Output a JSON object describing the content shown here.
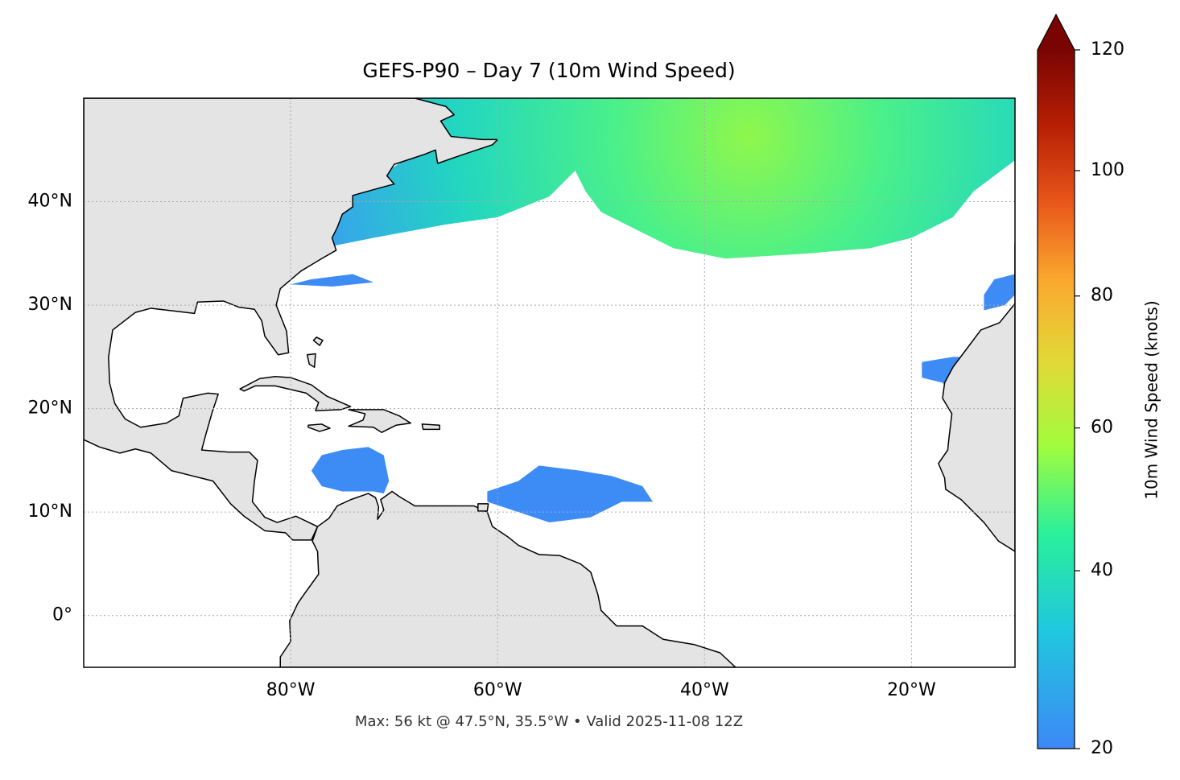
{
  "chart_data": {
    "type": "map",
    "title": "GEFS-P90 – Day 7 (10m Wind Speed)",
    "annotation": "Max: 56 kt @ 47.5°N, 35.5°W • Valid 2025-11-08 12Z",
    "xlim": [
      -100,
      -10
    ],
    "ylim": [
      -5,
      50
    ],
    "xticks": [
      {
        "value": -80,
        "label": "80°W"
      },
      {
        "value": -60,
        "label": "60°W"
      },
      {
        "value": -40,
        "label": "40°W"
      },
      {
        "value": -20,
        "label": "20°W"
      }
    ],
    "yticks": [
      {
        "value": 0,
        "label": "0°"
      },
      {
        "value": 10,
        "label": "10°N"
      },
      {
        "value": 20,
        "label": "20°N"
      },
      {
        "value": 30,
        "label": "30°N"
      },
      {
        "value": 40,
        "label": "40°N"
      }
    ],
    "grid": true,
    "colorbar": {
      "label": "10m Wind Speed (knots)",
      "clim": [
        20,
        120
      ],
      "ticks": [
        20,
        40,
        60,
        80,
        100,
        120
      ],
      "norm": "power",
      "gamma": 0.85,
      "extend": "max",
      "colormap": [
        "#3d88f6",
        "#1fc8de",
        "#2af09a",
        "#a2fc3c",
        "#e2d837",
        "#fba82e",
        "#e8561a",
        "#b61f04",
        "#7a0403"
      ]
    }
  }
}
